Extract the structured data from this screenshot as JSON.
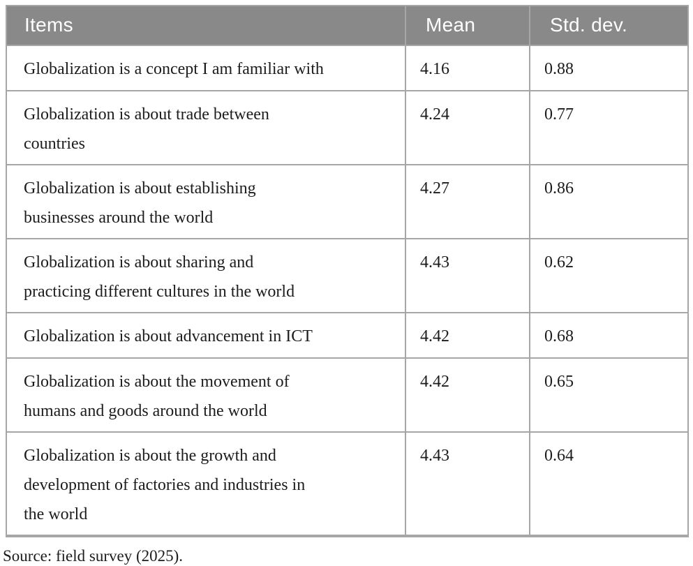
{
  "table": {
    "headers": [
      "Items",
      "Mean",
      "Std. dev."
    ],
    "rows": [
      {
        "item": "Globalization is a concept I am familiar with",
        "mean": "4.16",
        "std": "0.88"
      },
      {
        "item": "Globalization is about trade between\ncountries",
        "mean": "4.24",
        "std": "0.77"
      },
      {
        "item": "Globalization is about establishing\nbusinesses around the world",
        "mean": "4.27",
        "std": "0.86"
      },
      {
        "item": "Globalization is about sharing and\npracticing different cultures in the world",
        "mean": "4.43",
        "std": "0.62"
      },
      {
        "item": "Globalization is about advancement in ICT",
        "mean": "4.42",
        "std": "0.68"
      },
      {
        "item": "Globalization is about the movement of\nhumans and goods around the world",
        "mean": "4.42",
        "std": "0.65"
      },
      {
        "item": "Globalization is about the growth and\ndevelopment of factories and industries in\nthe world",
        "mean": "4.43",
        "std": "0.64"
      }
    ]
  },
  "source_note": "Source: field survey (2025).",
  "colors": {
    "header_bg": "#898989",
    "header_text": "#ffffff",
    "grid": "#a6a6a6",
    "body_text": "#1c1c1c"
  }
}
